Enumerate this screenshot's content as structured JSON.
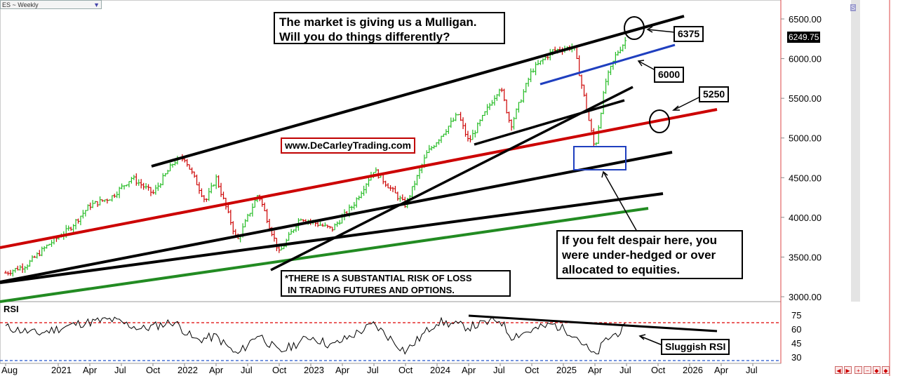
{
  "symbol": "ES ~ Weekly",
  "scroll_tag": "S",
  "price_axis": {
    "ticks": [
      "6500.00",
      "6000.00",
      "5500.00",
      "5000.00",
      "4500.00",
      "4000.00",
      "3500.00",
      "3000.00"
    ],
    "current_price": "6249.75"
  },
  "rsi_axis": {
    "label": "RSI",
    "ticks": [
      "75",
      "60",
      "45",
      "30"
    ]
  },
  "time_axis": {
    "labels": [
      "Aug",
      "2021",
      "Apr",
      "Jul",
      "Oct",
      "2022",
      "Apr",
      "Jul",
      "Oct",
      "2023",
      "Apr",
      "Jul",
      "Oct",
      "2024",
      "Apr",
      "Jul",
      "Oct",
      "2025",
      "Apr",
      "Jul",
      "Oct",
      "2026",
      "Apr",
      "Jul"
    ]
  },
  "annotations": {
    "headline_line1": "The market is giving us a Mulligan.",
    "headline_line2": "Will you do things differently?",
    "website": "www.DeCarleyTrading.com",
    "risk_line1": "*THERE IS A SUBSTANTIAL RISK OF LOSS",
    "risk_line2": "IN TRADING FUTURES AND OPTIONS.",
    "despair_line1": "If you felt despair here, you",
    "despair_line2": "were under-hedged or over",
    "despair_line3": "allocated to equities.",
    "level_6375": "6375",
    "level_6000": "6000",
    "level_5250": "5250",
    "rsi_note": "Sluggish RSI"
  },
  "colors": {
    "up_bar": "#22bb22",
    "down_bar": "#cc0000",
    "trend_black": "#000000",
    "trend_red": "#cc0000",
    "trend_green": "#228b22",
    "trend_blue": "#1f3fbf",
    "rsi_red_ref": "#dd0000",
    "rsi_blue_ref": "#2255cc"
  },
  "chart_data": {
    "type": "line",
    "title": "ES ~ Weekly",
    "ylim": [
      3000,
      6600
    ],
    "rsi_ylim": [
      25,
      80
    ],
    "price_path": [
      [
        "2020-08",
        3300
      ],
      [
        "2020-10",
        3400
      ],
      [
        "2020-12",
        3650
      ],
      [
        "2021-02",
        3850
      ],
      [
        "2021-04",
        4150
      ],
      [
        "2021-06",
        4250
      ],
      [
        "2021-08",
        4500
      ],
      [
        "2021-10",
        4300
      ],
      [
        "2021-12",
        4700
      ],
      [
        "2022-01",
        4750
      ],
      [
        "2022-03",
        4200
      ],
      [
        "2022-04",
        4500
      ],
      [
        "2022-06",
        3700
      ],
      [
        "2022-08",
        4300
      ],
      [
        "2022-10",
        3550
      ],
      [
        "2022-12",
        4000
      ],
      [
        "2023-03",
        3850
      ],
      [
        "2023-05",
        4150
      ],
      [
        "2023-07",
        4600
      ],
      [
        "2023-10",
        4150
      ],
      [
        "2023-12",
        4800
      ],
      [
        "2024-03",
        5300
      ],
      [
        "2024-04",
        4950
      ],
      [
        "2024-07",
        5650
      ],
      [
        "2024-08",
        5150
      ],
      [
        "2024-10",
        5850
      ],
      [
        "2024-12",
        6100
      ],
      [
        "2025-02",
        6150
      ],
      [
        "2025-03",
        5500
      ],
      [
        "2025-04",
        4850
      ],
      [
        "2025-05",
        5700
      ],
      [
        "2025-06",
        6050
      ],
      [
        "2025-07",
        6250
      ]
    ],
    "rsi_path": [
      [
        "2020-08",
        62
      ],
      [
        "2020-11",
        55
      ],
      [
        "2021-03",
        66
      ],
      [
        "2021-06",
        70
      ],
      [
        "2021-09",
        60
      ],
      [
        "2021-12",
        68
      ],
      [
        "2022-02",
        48
      ],
      [
        "2022-04",
        52
      ],
      [
        "2022-06",
        32
      ],
      [
        "2022-08",
        55
      ],
      [
        "2022-10",
        35
      ],
      [
        "2023-01",
        52
      ],
      [
        "2023-03",
        42
      ],
      [
        "2023-07",
        65
      ],
      [
        "2023-10",
        36
      ],
      [
        "2024-01",
        68
      ],
      [
        "2024-04",
        62
      ],
      [
        "2024-07",
        70
      ],
      [
        "2024-08",
        52
      ],
      [
        "2024-12",
        65
      ],
      [
        "2025-02",
        55
      ],
      [
        "2025-04",
        30
      ],
      [
        "2025-05",
        48
      ],
      [
        "2025-07",
        62
      ]
    ],
    "rsi_reference_levels": [
      70,
      30
    ],
    "horizontal_levels": [
      6375,
      6000,
      5250
    ]
  }
}
